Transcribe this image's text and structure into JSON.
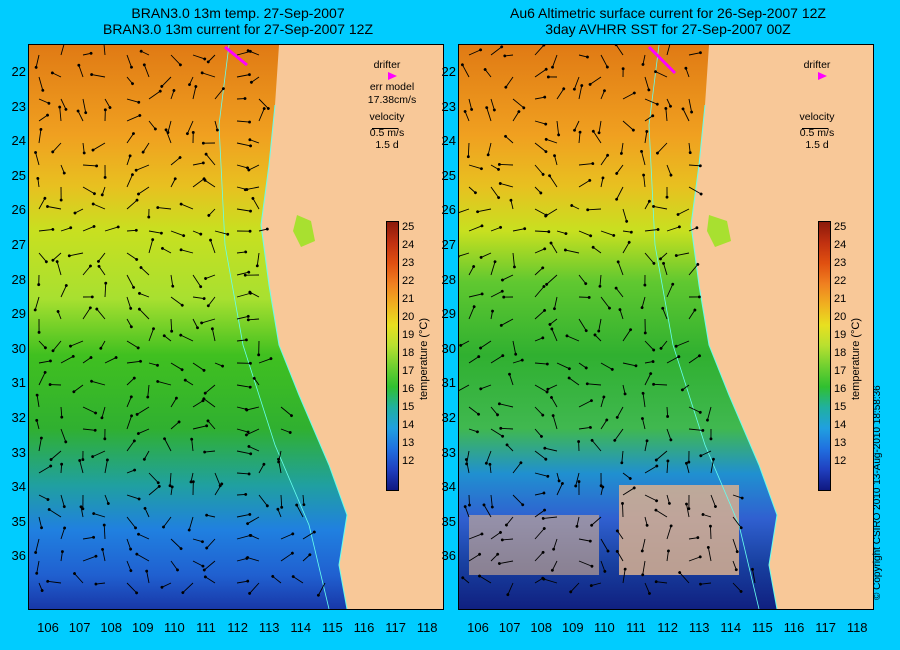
{
  "left_panel": {
    "title_line1": "BRAN3.0 13m temp. 27-Sep-2007",
    "title_line2": "BRAN3.0 13m current for 27-Sep-2007 12Z",
    "legend": {
      "drifter_label": "drifter",
      "err_label": "err model",
      "err_value": "17.38cm/s",
      "velocity_label": "velocity",
      "velocity_scale": "0.5 m/s",
      "velocity_time": "1.5 d"
    }
  },
  "right_panel": {
    "title_line1": "Au6 Altimetric surface current for 26-Sep-2007 12Z",
    "title_line2": "3day AVHRR SST for 27-Sep-2007 00Z",
    "legend": {
      "drifter_label": "drifter",
      "velocity_label": "velocity",
      "velocity_scale": "0.5 m/s",
      "velocity_time": "1.5 d"
    }
  },
  "axes": {
    "lat_ticks": [
      "22",
      "23",
      "24",
      "25",
      "26",
      "27",
      "28",
      "29",
      "30",
      "31",
      "32",
      "33",
      "34",
      "35",
      "36"
    ],
    "lon_ticks": [
      "106",
      "107",
      "108",
      "109",
      "110",
      "111",
      "112",
      "113",
      "114",
      "115",
      "116",
      "117",
      "118"
    ]
  },
  "colorbar": {
    "label": "temperature (°C)",
    "ticks": [
      "25",
      "24",
      "23",
      "22",
      "21",
      "20",
      "19",
      "18",
      "17",
      "16",
      "15",
      "14",
      "13",
      "12"
    ]
  },
  "copyright": "© Copyright CSIRO 2010   13-Aug-2010 18:58:36",
  "colors": {
    "background": "#00ccff",
    "land": "#f8c898",
    "drifter": "#ff00ff",
    "contour": "#66ffee"
  }
}
